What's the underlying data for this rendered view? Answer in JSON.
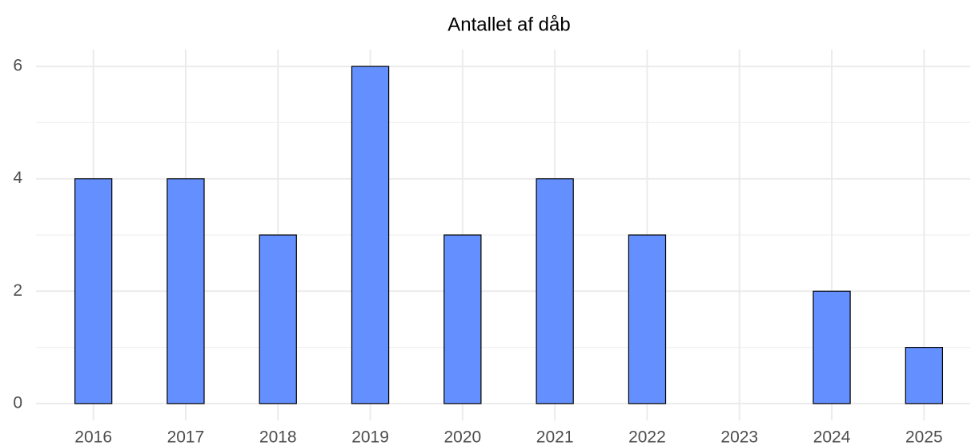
{
  "chart_data": {
    "type": "bar",
    "title": "Antallet af dåb",
    "categories": [
      "2016",
      "2017",
      "2018",
      "2019",
      "2020",
      "2021",
      "2022",
      "2023",
      "2024",
      "2025"
    ],
    "values": [
      4,
      4,
      3,
      6,
      3,
      4,
      3,
      0,
      2,
      1
    ],
    "color": "#648fff",
    "ylim": [
      -0.3,
      6.3
    ],
    "yticks": [
      0,
      2,
      4,
      6
    ],
    "grid": true
  }
}
